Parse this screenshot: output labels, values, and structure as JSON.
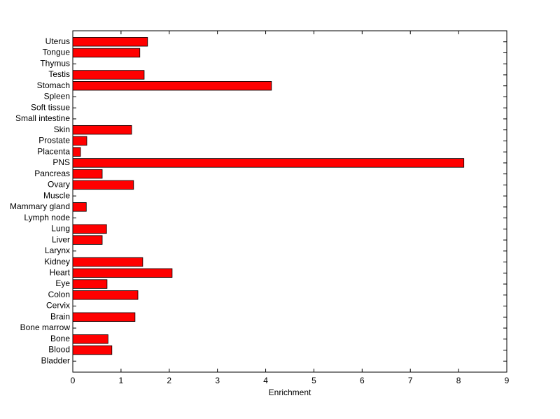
{
  "chart_data": {
    "type": "barh",
    "xlabel": "Enrichment",
    "categories": [
      "Bladder",
      "Blood",
      "Bone",
      "Bone marrow",
      "Brain",
      "Cervix",
      "Colon",
      "Eye",
      "Heart",
      "Kidney",
      "Larynx",
      "Liver",
      "Lung",
      "Lymph node",
      "Mammary gland",
      "Muscle",
      "Ovary",
      "Pancreas",
      "PNS",
      "Placenta",
      "Prostate",
      "Skin",
      "Small intestine",
      "Soft tissue",
      "Spleen",
      "Stomach",
      "Testis",
      "Thymus",
      "Tongue",
      "Uterus"
    ],
    "values": [
      0,
      0.81,
      0.73,
      0,
      1.29,
      0,
      1.35,
      0.71,
      2.06,
      1.45,
      0,
      0.61,
      0.7,
      0,
      0.28,
      0,
      1.26,
      0.61,
      8.11,
      0.16,
      0.29,
      1.22,
      0,
      0,
      0,
      4.12,
      1.48,
      0,
      1.39,
      1.55
    ],
    "color": "#ff0000",
    "edgecolor": "#000000",
    "xlim": [
      0,
      9
    ],
    "xticks": [
      0,
      1,
      2,
      3,
      4,
      5,
      6,
      7,
      8,
      9
    ],
    "grid": false
  }
}
